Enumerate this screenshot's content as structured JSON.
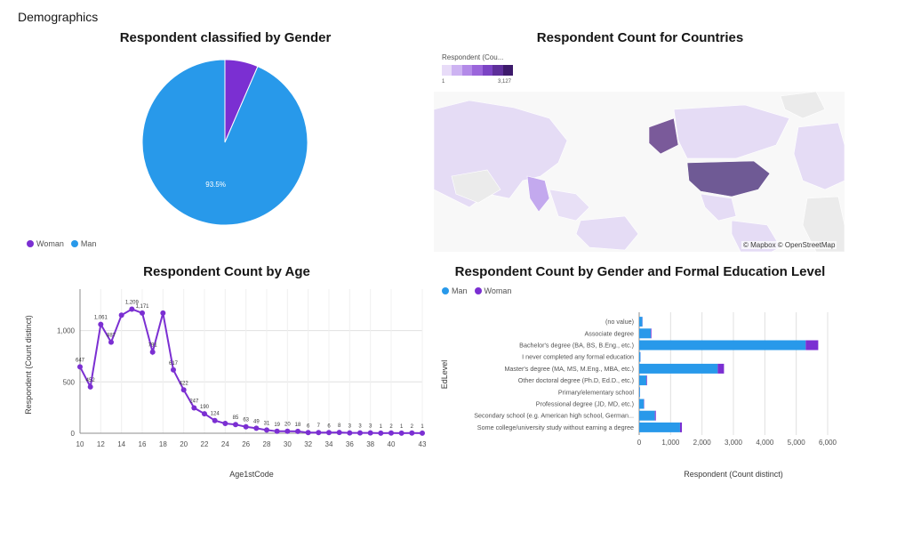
{
  "page": {
    "title": "Demographics"
  },
  "colors": {
    "woman": "#7b2fd2",
    "man": "#2899ea",
    "grid": "#e0e0e0",
    "axis": "#8d8d8d"
  },
  "charts": {
    "gender": {
      "title": "Respondent classified by Gender",
      "legend": [
        {
          "label": "Woman",
          "color": "#7b2fd2"
        },
        {
          "label": "Man",
          "color": "#2899ea"
        }
      ],
      "slice_label": "93.5%"
    },
    "countries": {
      "title": "Respondent Count for Countries",
      "legend_title": "Respondent (Cou...",
      "legend_min": "1",
      "legend_max": "3,127",
      "attribution": "© Mapbox © OpenStreetMap"
    },
    "age": {
      "title": "Respondent Count by Age",
      "xlabel": "Age1stCode",
      "ylabel": "Respondent (Count distinct)",
      "yticks": [
        "0",
        "500",
        "1,000"
      ],
      "xticks": [
        "10",
        "12",
        "14",
        "16",
        "18",
        "20",
        "22",
        "24",
        "26",
        "28",
        "30",
        "32",
        "34",
        "36",
        "38",
        "40",
        "43"
      ]
    },
    "education": {
      "title": "Respondent Count by Gender and Formal Education Level",
      "legend": [
        {
          "label": "Man",
          "color": "#2899ea"
        },
        {
          "label": "Woman",
          "color": "#7b2fd2"
        }
      ],
      "ylabel": "EdLevel",
      "xlabel": "Respondent (Count distinct)",
      "xticks": [
        "0",
        "1,000",
        "2,000",
        "3,000",
        "4,000",
        "5,000",
        "6,000"
      ]
    }
  },
  "chart_data": [
    {
      "type": "pie",
      "title": "Respondent classified by Gender",
      "categories": [
        "Woman",
        "Man"
      ],
      "values": [
        6.5,
        93.5
      ],
      "data_labels": [
        "",
        "93.5%"
      ]
    },
    {
      "type": "line",
      "title": "Respondent Count by Age",
      "xlabel": "Age1stCode",
      "ylabel": "Respondent (Count distinct)",
      "ylim": [
        0,
        1300
      ],
      "xlim": [
        10,
        43
      ],
      "x": [
        10,
        11,
        12,
        13,
        14,
        15,
        16,
        17,
        18,
        19,
        20,
        21,
        22,
        23,
        24,
        25,
        26,
        27,
        28,
        29,
        30,
        31,
        32,
        33,
        34,
        35,
        36,
        37,
        38,
        39,
        40,
        41,
        42,
        43
      ],
      "values": [
        647,
        452,
        1061,
        887,
        1150,
        1209,
        1171,
        791,
        1171,
        617,
        422,
        247,
        190,
        124,
        95,
        85,
        63,
        49,
        31,
        19,
        20,
        18,
        6,
        7,
        6,
        8,
        3,
        3,
        3,
        1,
        2,
        1,
        2,
        1
      ],
      "data_labels": [
        "647",
        "452",
        "1,061",
        "887",
        "",
        "1,209",
        "1,171",
        "791",
        "",
        "617",
        "422",
        "247",
        "190",
        "124",
        "",
        "85",
        "63",
        "49",
        "31",
        "19",
        "20",
        "18",
        "6",
        "7",
        "6",
        "8",
        "3",
        "3",
        "3",
        "1",
        "2",
        "1",
        "2",
        "1"
      ]
    },
    {
      "type": "bar",
      "title": "Respondent Count by Gender and Formal Education Level",
      "xlabel": "Respondent (Count distinct)",
      "ylabel": "EdLevel",
      "xlim": [
        0,
        6000
      ],
      "categories": [
        "(no value)",
        "Associate degree",
        "Bachelor's degree (BA, BS, B.Eng., etc.)",
        "I never completed any formal education",
        "Master's degree (MA, MS, M.Eng., MBA, etc.)",
        "Other doctoral degree (Ph.D, Ed.D., etc.)",
        "Primary/elementary school",
        "Professional degree (JD, MD, etc.)",
        "Secondary school (e.g. American high school, German...",
        "Some college/university study without earning a degree"
      ],
      "series": [
        {
          "name": "Man",
          "values": [
            100,
            370,
            5300,
            40,
            2500,
            230,
            25,
            150,
            500,
            1300
          ]
        },
        {
          "name": "Woman",
          "values": [
            5,
            20,
            400,
            3,
            200,
            20,
            2,
            10,
            30,
            60
          ]
        }
      ]
    }
  ]
}
